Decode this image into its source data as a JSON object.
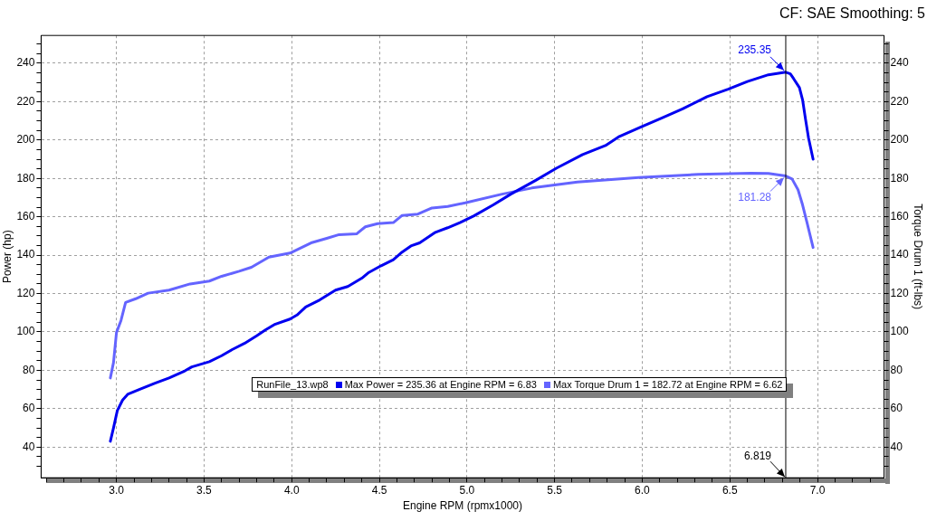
{
  "chart_data": {
    "type": "line",
    "subtitle": "CF: SAE Smoothing: 5",
    "xlabel": "Engine RPM (rpmx1000)",
    "ylabel": "Power (hp)",
    "y2label": "Torque Drum 1 (ft-lbs)",
    "legend_title": "RunFile_13.wp8",
    "legend": "bottom",
    "grid": true,
    "xlim": [
      2.57,
      7.38
    ],
    "ylim": [
      24,
      254.5
    ],
    "y2lim": [
      24,
      254.5
    ],
    "xticks": [
      {
        "value": 2.6,
        "label": null
      },
      {
        "value": 2.7,
        "label": null
      },
      {
        "value": 2.8,
        "label": null
      },
      {
        "value": 2.9,
        "label": null
      },
      {
        "value": 3,
        "label": "3.0"
      },
      {
        "value": 3.1,
        "label": null
      },
      {
        "value": 3.2,
        "label": null
      },
      {
        "value": 3.3,
        "label": null
      },
      {
        "value": 3.4,
        "label": null
      },
      3.5,
      {
        "value": 3.6,
        "label": null
      },
      {
        "value": 3.7,
        "label": null
      },
      {
        "value": 3.8,
        "label": null
      },
      {
        "value": 3.9,
        "label": null
      },
      {
        "value": 4,
        "label": "4.0"
      },
      {
        "value": 4.1,
        "label": null
      },
      {
        "value": 4.2,
        "label": null
      },
      {
        "value": 4.3,
        "label": null
      },
      {
        "value": 4.4,
        "label": null
      },
      4.5,
      {
        "value": 4.6,
        "label": null
      },
      {
        "value": 4.7,
        "label": null
      },
      {
        "value": 4.8,
        "label": null
      },
      {
        "value": 4.9,
        "label": null
      },
      {
        "value": 5,
        "label": "5.0"
      },
      {
        "value": 5.1,
        "label": null
      },
      {
        "value": 5.2,
        "label": null
      },
      {
        "value": 5.3,
        "label": null
      },
      {
        "value": 5.4,
        "label": null
      },
      5.5,
      {
        "value": 5.6,
        "label": null
      },
      {
        "value": 5.7,
        "label": null
      },
      {
        "value": 5.8,
        "label": null
      },
      {
        "value": 5.9,
        "label": null
      },
      {
        "value": 6,
        "label": "6.0"
      },
      {
        "value": 6.1,
        "label": null
      },
      {
        "value": 6.2,
        "label": null
      },
      {
        "value": 6.3,
        "label": null
      },
      {
        "value": 6.4,
        "label": null
      },
      6.5,
      {
        "value": 6.6,
        "label": null
      },
      {
        "value": 6.7,
        "label": null
      },
      {
        "value": 6.8,
        "label": null
      },
      {
        "value": 6.9,
        "label": null
      },
      {
        "value": 7,
        "label": "7.0"
      },
      {
        "value": 7.1,
        "label": null
      },
      {
        "value": 7.2,
        "label": null
      },
      {
        "value": 7.3,
        "label": null
      }
    ],
    "yticks": [
      {
        "value": 30,
        "label": null
      },
      {
        "value": 35,
        "label": null
      },
      40,
      {
        "value": 45,
        "label": null
      },
      {
        "value": 50,
        "label": null
      },
      {
        "value": 55,
        "label": null
      },
      60,
      {
        "value": 65,
        "label": null
      },
      {
        "value": 70,
        "label": null
      },
      {
        "value": 75,
        "label": null
      },
      80,
      {
        "value": 85,
        "label": null
      },
      {
        "value": 90,
        "label": null
      },
      {
        "value": 95,
        "label": null
      },
      100,
      {
        "value": 105,
        "label": null
      },
      {
        "value": 110,
        "label": null
      },
      {
        "value": 115,
        "label": null
      },
      120,
      {
        "value": 125,
        "label": null
      },
      {
        "value": 130,
        "label": null
      },
      {
        "value": 135,
        "label": null
      },
      140,
      {
        "value": 145,
        "label": null
      },
      {
        "value": 150,
        "label": null
      },
      {
        "value": 155,
        "label": null
      },
      160,
      {
        "value": 165,
        "label": null
      },
      {
        "value": 170,
        "label": null
      },
      {
        "value": 175,
        "label": null
      },
      180,
      {
        "value": 185,
        "label": null
      },
      {
        "value": 190,
        "label": null
      },
      {
        "value": 195,
        "label": null
      },
      200,
      {
        "value": 205,
        "label": null
      },
      {
        "value": 210,
        "label": null
      },
      {
        "value": 215,
        "label": null
      },
      220,
      {
        "value": 225,
        "label": null
      },
      {
        "value": 230,
        "label": null
      },
      {
        "value": 235,
        "label": null
      },
      240,
      {
        "value": 245,
        "label": null
      },
      {
        "value": 250,
        "label": null
      }
    ],
    "y2ticks": [
      {
        "value": 30,
        "label": null
      },
      {
        "value": 35,
        "label": null
      },
      40,
      {
        "value": 45,
        "label": null
      },
      {
        "value": 50,
        "label": null
      },
      {
        "value": 55,
        "label": null
      },
      60,
      {
        "value": 65,
        "label": null
      },
      {
        "value": 70,
        "label": null
      },
      {
        "value": 75,
        "label": null
      },
      80,
      {
        "value": 85,
        "label": null
      },
      {
        "value": 90,
        "label": null
      },
      {
        "value": 95,
        "label": null
      },
      100,
      {
        "value": 105,
        "label": null
      },
      {
        "value": 110,
        "label": null
      },
      {
        "value": 115,
        "label": null
      },
      120,
      {
        "value": 125,
        "label": null
      },
      {
        "value": 130,
        "label": null
      },
      {
        "value": 135,
        "label": null
      },
      140,
      {
        "value": 145,
        "label": null
      },
      {
        "value": 150,
        "label": null
      },
      {
        "value": 155,
        "label": null
      },
      160,
      {
        "value": 165,
        "label": null
      },
      {
        "value": 170,
        "label": null
      },
      {
        "value": 175,
        "label": null
      },
      180,
      {
        "value": 185,
        "label": null
      },
      {
        "value": 190,
        "label": null
      },
      {
        "value": 195,
        "label": null
      },
      200,
      {
        "value": 205,
        "label": null
      },
      {
        "value": 210,
        "label": null
      },
      {
        "value": 215,
        "label": null
      },
      220,
      {
        "value": 225,
        "label": null
      },
      {
        "value": 230,
        "label": null
      },
      {
        "value": 235,
        "label": null
      },
      240,
      {
        "value": 245,
        "label": null
      },
      {
        "value": 250,
        "label": null
      }
    ],
    "series": [
      {
        "name": "Max Power = 235.36 at Engine RPM = 6.83",
        "color": "#0000f0",
        "x": [
          2.965,
          2.983,
          3.0,
          3.005,
          3.035,
          3.064,
          3.13,
          3.22,
          3.3,
          3.39,
          3.43,
          3.53,
          3.6,
          3.66,
          3.73,
          3.8,
          3.85,
          3.9,
          3.99,
          4.03,
          4.08,
          4.16,
          4.25,
          4.32,
          4.4,
          4.44,
          4.51,
          4.58,
          4.63,
          4.68,
          4.73,
          4.82,
          4.89,
          4.96,
          5.04,
          5.15,
          5.25,
          5.39,
          5.51,
          5.66,
          5.79,
          5.87,
          5.99,
          6.11,
          6.23,
          6.37,
          6.49,
          6.6,
          6.72,
          6.819,
          6.845,
          6.863,
          6.897,
          6.915,
          6.932,
          6.949,
          6.975
        ],
        "values": [
          43,
          50,
          57,
          59,
          64.5,
          67.5,
          70,
          73.3,
          76,
          79.7,
          81.8,
          84.5,
          87.6,
          90.8,
          94,
          98,
          101,
          103.8,
          106.7,
          108.8,
          113,
          116.7,
          121.8,
          123.7,
          128,
          131,
          134.5,
          137.6,
          141.6,
          144.8,
          146.4,
          151.9,
          154.3,
          157,
          160.5,
          166.2,
          171.8,
          178.9,
          185.3,
          192.4,
          197.1,
          201.9,
          206.7,
          211.4,
          216.2,
          222.6,
          226.5,
          230.5,
          234,
          235.35,
          234.5,
          232.1,
          227.3,
          221,
          210.7,
          201.1,
          190
        ]
      },
      {
        "name": "Max Torque Drum 1 = 182.72 at Engine RPM = 6.62",
        "color": "#6464ff",
        "axis": "y2",
        "x": [
          2.965,
          2.983,
          3.0,
          3.026,
          3.052,
          3.11,
          3.18,
          3.3,
          3.42,
          3.53,
          3.6,
          3.7,
          3.77,
          3.87,
          3.99,
          4.11,
          4.2,
          4.27,
          4.37,
          4.42,
          4.49,
          4.58,
          4.63,
          4.72,
          4.8,
          4.89,
          4.99,
          5.2,
          5.37,
          5.63,
          5.98,
          6.32,
          6.62,
          6.72,
          6.819,
          6.855,
          6.889,
          6.915,
          6.941,
          6.975
        ],
        "values": [
          76,
          84,
          99.7,
          106,
          115.4,
          117.3,
          120.2,
          121.8,
          125,
          126.5,
          129,
          131.6,
          133.7,
          139,
          141.1,
          146.4,
          148.8,
          150.7,
          151.1,
          154.8,
          156.4,
          157,
          160.7,
          161.4,
          164.6,
          165.4,
          167.3,
          171.8,
          175,
          178.1,
          180.5,
          182.1,
          182.7,
          182.6,
          181.28,
          179.7,
          174.1,
          166.2,
          156.7,
          144
        ]
      }
    ],
    "ref_lines": [
      {
        "axis": "x",
        "value": 6.819,
        "label": "6.819",
        "color": "#000000"
      }
    ],
    "annotations": [
      {
        "text": "235.35",
        "x": 6.819,
        "y": 235.35
      },
      {
        "text": "181.28",
        "x": 6.819,
        "y": 181.28
      }
    ]
  }
}
